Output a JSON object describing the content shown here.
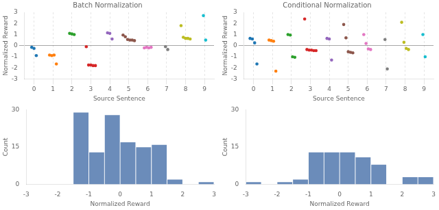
{
  "chart_data": [
    {
      "type": "scatter",
      "title": "Batch Normalization",
      "xlabel": "Source Sentence",
      "ylabel": "Normalized Reward",
      "xlim": [
        -0.5,
        9.5
      ],
      "ylim": [
        -3,
        3
      ],
      "xticks": [
        0,
        1,
        2,
        3,
        4,
        5,
        6,
        7,
        8,
        9
      ],
      "yticks": [
        -3,
        -2,
        -1,
        0,
        1,
        2,
        3
      ],
      "grid": "x",
      "series": [
        {
          "color": "#1f77b4",
          "x": [
            0,
            0,
            0
          ],
          "values": [
            -0.15,
            -0.25,
            -0.9
          ]
        },
        {
          "color": "#ff7f0e",
          "x": [
            1,
            1,
            1,
            1
          ],
          "values": [
            -0.85,
            -0.9,
            -0.85,
            -1.65
          ]
        },
        {
          "color": "#2ca02c",
          "x": [
            2,
            2,
            2
          ],
          "values": [
            1.1,
            1.05,
            1.0
          ]
        },
        {
          "color": "#d62728",
          "x": [
            3,
            3,
            3,
            3,
            3
          ],
          "values": [
            -0.1,
            -1.75,
            -1.75,
            -1.8,
            -1.8
          ]
        },
        {
          "color": "#9467bd",
          "x": [
            4,
            4,
            4
          ],
          "values": [
            1.15,
            1.1,
            0.6
          ]
        },
        {
          "color": "#8c564b",
          "x": [
            5,
            5,
            5,
            5,
            5,
            5
          ],
          "values": [
            0.95,
            0.8,
            0.55,
            0.5,
            0.5,
            0.45
          ]
        },
        {
          "color": "#e377c2",
          "x": [
            6,
            6,
            6,
            6
          ],
          "values": [
            -0.2,
            -0.15,
            -0.2,
            -0.15
          ]
        },
        {
          "color": "#7f7f7f",
          "x": [
            7,
            7
          ],
          "values": [
            -0.1,
            -0.35
          ]
        },
        {
          "color": "#bcbd22",
          "x": [
            8,
            8,
            8,
            8,
            8
          ],
          "values": [
            1.8,
            0.75,
            0.65,
            0.65,
            0.6
          ]
        },
        {
          "color": "#17becf",
          "x": [
            9,
            9
          ],
          "values": [
            2.7,
            0.5
          ]
        }
      ]
    },
    {
      "type": "scatter",
      "title": "Conditional Normalization",
      "xlabel": "Source Sentence",
      "ylabel": "Normalized Reward",
      "xlim": [
        -0.5,
        9.5
      ],
      "ylim": [
        -3,
        3
      ],
      "xticks": [
        0,
        1,
        2,
        3,
        4,
        5,
        6,
        7,
        8,
        9
      ],
      "yticks": [
        -3,
        -2,
        -1,
        0,
        1,
        2,
        3
      ],
      "grid": "x",
      "series": [
        {
          "color": "#1f77b4",
          "x": [
            0,
            0,
            0,
            0
          ],
          "values": [
            0.65,
            0.6,
            0.25,
            -1.65
          ]
        },
        {
          "color": "#ff7f0e",
          "x": [
            1,
            1,
            1,
            1
          ],
          "values": [
            0.5,
            0.45,
            0.4,
            -2.3
          ]
        },
        {
          "color": "#2ca02c",
          "x": [
            2,
            2,
            2,
            2
          ],
          "values": [
            1.0,
            0.95,
            -1.0,
            -1.05
          ]
        },
        {
          "color": "#d62728",
          "x": [
            3,
            3,
            3,
            3,
            3,
            3
          ],
          "values": [
            2.4,
            -0.35,
            -0.4,
            -0.4,
            -0.45,
            -0.45
          ]
        },
        {
          "color": "#9467bd",
          "x": [
            4,
            4,
            4
          ],
          "values": [
            0.65,
            0.6,
            -1.3
          ]
        },
        {
          "color": "#8c564b",
          "x": [
            5,
            5,
            5,
            5,
            5
          ],
          "values": [
            1.9,
            0.7,
            -0.55,
            -0.6,
            -0.65
          ]
        },
        {
          "color": "#e377c2",
          "x": [
            6,
            6,
            6,
            6
          ],
          "values": [
            1.0,
            0.2,
            -0.3,
            -0.35
          ]
        },
        {
          "color": "#7f7f7f",
          "x": [
            7,
            7
          ],
          "values": [
            0.55,
            -2.1
          ]
        },
        {
          "color": "#bcbd22",
          "x": [
            8,
            8,
            8,
            8
          ],
          "values": [
            2.1,
            0.3,
            -0.25,
            -0.35
          ]
        },
        {
          "color": "#17becf",
          "x": [
            9,
            9
          ],
          "values": [
            1.0,
            -1.0
          ]
        }
      ]
    },
    {
      "type": "histogram",
      "xlabel": "Normalized Reward",
      "ylabel": "Count",
      "xlim": [
        -3,
        3
      ],
      "ylim": [
        0,
        30
      ],
      "xticks": [
        -3,
        -2,
        -1,
        0,
        1,
        2,
        3
      ],
      "yticks": [
        0,
        15,
        30
      ],
      "grid": false,
      "color": "#6b8cba",
      "bins": [
        -1.5,
        -1.0,
        -0.5,
        0.0,
        0.5,
        1.0,
        1.5,
        2.0,
        2.5,
        3.0
      ],
      "values": [
        29,
        13,
        28,
        17,
        15,
        16,
        2,
        0,
        1
      ]
    },
    {
      "type": "histogram",
      "xlabel": "Normalized Reward",
      "ylabel": "Count",
      "xlim": [
        -3,
        3
      ],
      "ylim": [
        0,
        30
      ],
      "xticks": [
        -3,
        -2,
        -1,
        0,
        1,
        2,
        3
      ],
      "yticks": [
        0,
        15,
        30
      ],
      "grid": false,
      "color": "#6b8cba",
      "bins": [
        -3.0,
        -2.5,
        -2.0,
        -1.5,
        -1.0,
        -0.5,
        0.0,
        0.5,
        1.0,
        1.5,
        2.0,
        2.5,
        3.0
      ],
      "values": [
        1,
        0,
        1,
        2,
        13,
        13,
        13,
        11,
        8,
        0,
        3,
        3
      ]
    }
  ]
}
